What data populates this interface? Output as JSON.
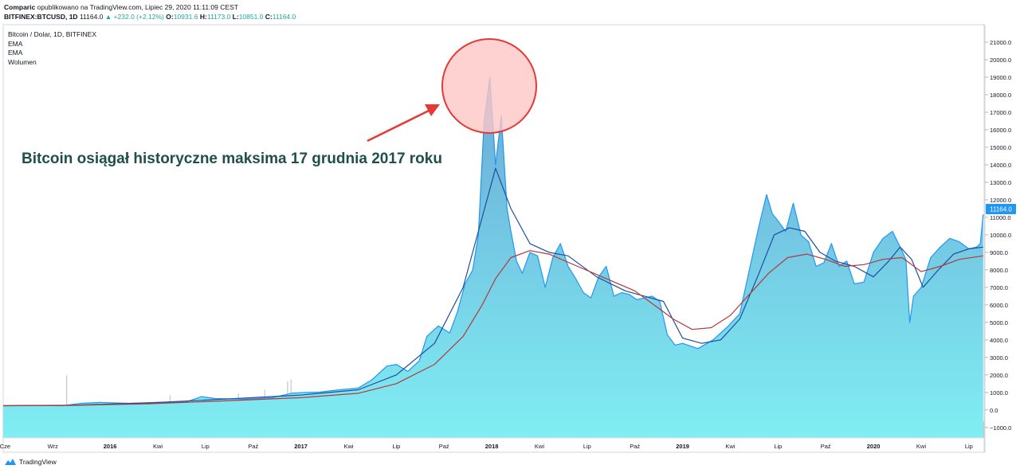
{
  "header": {
    "author": "Comparic",
    "published_text": "opublikowano na TradingView.com, Lipiec 29, 2020 11:11:09 CEST",
    "symbol": "BITFINEX:BTCUSD, 1D",
    "last": "11164.0",
    "change": "▲ +232.0 (+2.12%)",
    "o_label": "O:",
    "o_value": "10931.6",
    "h_label": "H:",
    "h_value": "11173.0",
    "l_label": "L:",
    "l_value": "10851.0",
    "c_label": "C:",
    "c_value": "11164.0"
  },
  "legend": {
    "title": "Bitcoin / Dolar, 1D, BITFINEX",
    "ema1": "EMA",
    "ema2": "EMA",
    "volume": "Wolumen"
  },
  "annotation": {
    "text": "Bitcoin osiągał historyczne maksima 17 grudnia 2017 roku"
  },
  "price_badge": "11164.0",
  "footer": {
    "brand": "TradingView"
  },
  "colors": {
    "area_top": "#6aa9d6",
    "area_bottom": "#80eef3",
    "price_line": "#2196f3",
    "ema_fast": "#1f4d9e",
    "ema_slow": "#b23a3a",
    "volume": "#9e9e9e",
    "annotation_text": "#1e4f4d",
    "circle_fill": "#ffc7c7",
    "circle_stroke": "#e53935",
    "arrow": "#e53935"
  },
  "chart_data": {
    "type": "area",
    "title": "Bitcoin / Dolar, 1D, BITFINEX",
    "x_ticks": [
      {
        "label": "Cze",
        "x": 2015.45
      },
      {
        "label": "Wrz",
        "x": 2015.7
      },
      {
        "label": "2016",
        "x": 2016.0
      },
      {
        "label": "Kwi",
        "x": 2016.25
      },
      {
        "label": "Lip",
        "x": 2016.5
      },
      {
        "label": "Paź",
        "x": 2016.75
      },
      {
        "label": "2017",
        "x": 2017.0
      },
      {
        "label": "Kwi",
        "x": 2017.25
      },
      {
        "label": "Lip",
        "x": 2017.5
      },
      {
        "label": "Paź",
        "x": 2017.75
      },
      {
        "label": "2018",
        "x": 2018.0
      },
      {
        "label": "Kwi",
        "x": 2018.25
      },
      {
        "label": "Lip",
        "x": 2018.5
      },
      {
        "label": "Paź",
        "x": 2018.75
      },
      {
        "label": "2019",
        "x": 2019.0
      },
      {
        "label": "Kwi",
        "x": 2019.25
      },
      {
        "label": "Lip",
        "x": 2019.5
      },
      {
        "label": "Paź",
        "x": 2019.75
      },
      {
        "label": "2020",
        "x": 2020.0
      },
      {
        "label": "Kwi",
        "x": 2020.25
      },
      {
        "label": "Lip",
        "x": 2020.5
      }
    ],
    "x_range": [
      2015.44,
      2020.58
    ],
    "y_ticks": [
      21000,
      20000,
      19000,
      18000,
      17000,
      16000,
      15000,
      14000,
      13000,
      12000,
      11000,
      10000,
      9000,
      8000,
      7000,
      6000,
      5000,
      4000,
      3000,
      2000,
      1000,
      0,
      -1000
    ],
    "y_tick_labels": [
      "21000.0",
      "20000.0",
      "19000.0",
      "18000.0",
      "17000.0",
      "16000.0",
      "15000.0",
      "14000.0",
      "13000.0",
      "12000.0",
      "11000.0",
      "10000.0",
      "9000.0",
      "8000.0",
      "7000.0",
      "6000.0",
      "5000.0",
      "4000.0",
      "3000.0",
      "2000.0",
      "1000.0",
      "0.0",
      "−1000.0"
    ],
    "ylim": [
      -1600,
      22000
    ],
    "series": [
      {
        "name": "Bitcoin / Dolar",
        "x": [
          2015.44,
          2015.6,
          2015.75,
          2015.85,
          2015.95,
          2016.1,
          2016.25,
          2016.4,
          2016.48,
          2016.55,
          2016.7,
          2016.85,
          2016.95,
          2017.02,
          2017.1,
          2017.2,
          2017.3,
          2017.37,
          2017.45,
          2017.5,
          2017.56,
          2017.62,
          2017.66,
          2017.72,
          2017.78,
          2017.82,
          2017.86,
          2017.9,
          2017.93,
          2017.96,
          2017.99,
          2018.02,
          2018.05,
          2018.08,
          2018.1,
          2018.13,
          2018.16,
          2018.2,
          2018.24,
          2018.28,
          2018.32,
          2018.36,
          2018.4,
          2018.44,
          2018.48,
          2018.52,
          2018.56,
          2018.6,
          2018.64,
          2018.68,
          2018.72,
          2018.76,
          2018.8,
          2018.84,
          2018.88,
          2018.92,
          2018.96,
          2019.0,
          2019.08,
          2019.16,
          2019.24,
          2019.3,
          2019.35,
          2019.4,
          2019.44,
          2019.47,
          2019.5,
          2019.54,
          2019.58,
          2019.62,
          2019.66,
          2019.7,
          2019.74,
          2019.78,
          2019.82,
          2019.86,
          2019.9,
          2019.95,
          2020.0,
          2020.05,
          2020.1,
          2020.14,
          2020.17,
          2020.19,
          2020.21,
          2020.25,
          2020.3,
          2020.35,
          2020.4,
          2020.45,
          2020.5,
          2020.54,
          2020.56,
          2020.575
        ],
        "values": [
          240,
          260,
          240,
          380,
          430,
          380,
          430,
          460,
          760,
          650,
          620,
          700,
          950,
          1000,
          1020,
          1150,
          1250,
          1700,
          2500,
          2600,
          2200,
          2800,
          4200,
          4800,
          4400,
          5600,
          7200,
          8000,
          10000,
          16500,
          19000,
          14000,
          16800,
          11500,
          10200,
          8500,
          7800,
          9000,
          8800,
          7000,
          8700,
          9500,
          8200,
          7500,
          6700,
          6400,
          7600,
          8200,
          6500,
          6700,
          6600,
          6300,
          6400,
          6500,
          6200,
          4300,
          3700,
          3800,
          3500,
          4000,
          4800,
          5500,
          8000,
          10500,
          12300,
          11200,
          10800,
          10200,
          11800,
          10000,
          9600,
          8200,
          8400,
          9500,
          8200,
          8500,
          7200,
          7300,
          9000,
          9800,
          10200,
          9300,
          8600,
          5000,
          6500,
          7000,
          8700,
          9300,
          9800,
          9600,
          9200,
          9300,
          9500,
          11164
        ]
      },
      {
        "name": "EMA",
        "x": [
          2015.44,
          2015.8,
          2016.2,
          2016.6,
          2017.0,
          2017.3,
          2017.5,
          2017.7,
          2017.85,
          2017.95,
          2018.02,
          2018.1,
          2018.2,
          2018.3,
          2018.4,
          2018.55,
          2018.7,
          2018.8,
          2018.9,
          2019.0,
          2019.1,
          2019.2,
          2019.3,
          2019.4,
          2019.48,
          2019.56,
          2019.64,
          2019.72,
          2019.8,
          2019.9,
          2020.0,
          2020.08,
          2020.14,
          2020.2,
          2020.26,
          2020.34,
          2020.42,
          2020.5,
          2020.575
        ],
        "values": [
          240,
          270,
          400,
          620,
          850,
          1150,
          2000,
          3800,
          7000,
          11000,
          13800,
          11500,
          9500,
          9000,
          8800,
          7600,
          6800,
          6500,
          6200,
          4100,
          3800,
          4000,
          5200,
          7800,
          10000,
          10400,
          10200,
          9000,
          8500,
          8200,
          7600,
          8500,
          9300,
          8600,
          7000,
          8000,
          8900,
          9200,
          9300
        ]
      },
      {
        "name": "EMA",
        "x": [
          2015.44,
          2015.8,
          2016.2,
          2016.6,
          2017.0,
          2017.3,
          2017.5,
          2017.7,
          2017.85,
          2017.95,
          2018.02,
          2018.1,
          2018.2,
          2018.3,
          2018.45,
          2018.6,
          2018.75,
          2018.85,
          2018.95,
          2019.05,
          2019.15,
          2019.25,
          2019.35,
          2019.45,
          2019.55,
          2019.65,
          2019.75,
          2019.85,
          2019.95,
          2020.05,
          2020.15,
          2020.25,
          2020.35,
          2020.45,
          2020.575
        ],
        "values": [
          240,
          260,
          350,
          520,
          700,
          950,
          1500,
          2600,
          4200,
          6000,
          7500,
          8700,
          9100,
          8900,
          8200,
          7500,
          6800,
          6000,
          5200,
          4600,
          4700,
          5400,
          6600,
          7800,
          8700,
          8900,
          8600,
          8200,
          8300,
          8600,
          8700,
          7900,
          8200,
          8600,
          8800
        ]
      }
    ],
    "volume_max_label": null
  }
}
